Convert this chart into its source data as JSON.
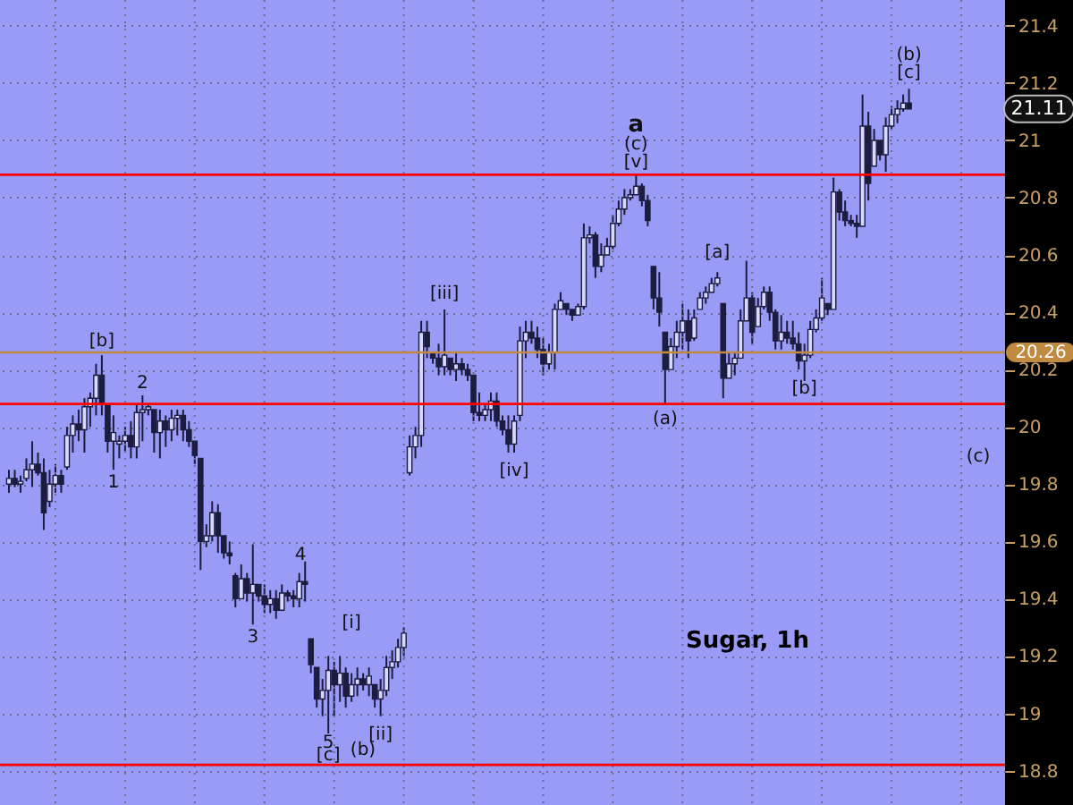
{
  "chart_data": {
    "type": "candlestick",
    "title": "Sugar, 1h",
    "color": "#1c1c40",
    "tick_labels": "y",
    "grid": true,
    "categories": [
      null,
      null,
      null,
      null,
      null,
      null,
      null,
      null,
      null,
      null,
      null,
      null,
      null,
      null,
      null,
      null,
      null,
      null,
      null,
      null,
      null,
      null,
      null,
      null,
      null,
      null,
      null,
      null,
      null,
      null,
      null,
      null,
      null,
      null,
      null,
      null,
      null,
      null,
      null,
      null,
      null,
      null,
      null,
      null,
      null,
      null,
      null,
      null,
      null,
      null,
      null,
      null,
      null,
      null,
      null,
      null,
      null,
      null,
      null,
      null,
      null,
      null,
      null,
      null,
      null,
      null,
      null,
      null,
      null,
      null,
      null,
      null,
      null,
      null,
      null,
      null,
      null,
      null,
      null,
      null,
      null,
      null,
      null,
      null,
      null,
      null,
      null,
      null,
      null,
      null,
      null,
      null,
      null,
      null,
      null,
      null,
      null,
      null,
      null,
      null,
      null,
      null,
      null,
      null,
      null,
      null,
      null,
      null,
      null,
      null,
      null,
      null,
      null,
      null,
      null,
      null,
      null,
      null,
      null,
      null,
      null,
      null,
      null,
      null,
      null,
      null,
      null,
      null,
      null,
      null,
      null,
      null,
      null,
      null,
      null,
      null,
      null,
      null,
      null,
      null,
      null,
      null,
      null,
      null,
      null,
      null,
      null,
      null,
      null,
      null,
      null,
      null,
      null,
      null,
      null,
      null,
      null,
      null,
      null,
      null,
      null,
      null,
      null,
      null,
      null,
      null,
      null,
      null,
      null,
      null,
      null
    ],
    "ohlc": [
      [
        19.8,
        19.85,
        19.77,
        19.82
      ],
      [
        19.82,
        19.85,
        19.79,
        19.8
      ],
      [
        19.8,
        19.83,
        19.77,
        19.81
      ],
      [
        19.82,
        19.89,
        19.81,
        19.85
      ],
      [
        19.85,
        19.95,
        19.79,
        19.87
      ],
      [
        19.87,
        19.91,
        19.83,
        19.84
      ],
      [
        19.84,
        19.89,
        19.64,
        19.7
      ],
      [
        19.74,
        19.85,
        19.72,
        19.8
      ],
      [
        19.8,
        19.87,
        19.77,
        19.83
      ],
      [
        19.83,
        19.85,
        19.77,
        19.8
      ],
      [
        19.86,
        20.0,
        19.85,
        19.97
      ],
      [
        19.97,
        20.04,
        19.91,
        20.01
      ],
      [
        20.01,
        20.06,
        19.95,
        19.99
      ],
      [
        19.99,
        20.1,
        19.91,
        20.07
      ],
      [
        20.07,
        20.12,
        20.0,
        20.1
      ],
      [
        20.1,
        20.22,
        20.04,
        20.18
      ],
      [
        20.18,
        20.25,
        20.04,
        20.08
      ],
      [
        20.08,
        20.08,
        19.91,
        19.95
      ],
      [
        19.95,
        20.04,
        19.85,
        19.98
      ],
      [
        19.94,
        19.97,
        19.89,
        19.95
      ],
      [
        19.95,
        20.0,
        19.91,
        19.97
      ],
      [
        19.97,
        20.02,
        19.89,
        19.93
      ],
      [
        19.93,
        20.08,
        19.89,
        20.05
      ],
      [
        20.05,
        20.11,
        19.95,
        20.06
      ],
      [
        20.06,
        20.08,
        20.04,
        20.07
      ],
      [
        20.06,
        20.06,
        19.91,
        19.98
      ],
      [
        19.98,
        20.06,
        19.89,
        20.02
      ],
      [
        20.02,
        20.04,
        19.93,
        19.99
      ],
      [
        19.99,
        20.06,
        19.95,
        20.03
      ],
      [
        20.03,
        20.06,
        19.97,
        20.04
      ],
      [
        20.04,
        20.06,
        19.95,
        19.99
      ],
      [
        19.99,
        20.02,
        19.93,
        19.95
      ],
      [
        19.95,
        19.95,
        19.87,
        19.9
      ],
      [
        19.89,
        19.89,
        19.5,
        19.6
      ],
      [
        19.6,
        19.66,
        19.58,
        19.62
      ],
      [
        19.62,
        19.74,
        19.6,
        19.7
      ],
      [
        19.7,
        19.73,
        19.56,
        19.62
      ],
      [
        19.62,
        19.62,
        19.54,
        19.56
      ],
      [
        19.56,
        19.6,
        19.52,
        19.55
      ],
      [
        19.48,
        19.49,
        19.37,
        19.4
      ],
      [
        19.4,
        19.52,
        19.4,
        19.47
      ],
      [
        19.47,
        19.49,
        19.39,
        19.42
      ],
      [
        19.42,
        19.59,
        19.31,
        19.45
      ],
      [
        19.45,
        19.45,
        19.39,
        19.41
      ],
      [
        19.41,
        19.45,
        19.35,
        19.38
      ],
      [
        19.38,
        19.43,
        19.35,
        19.4
      ],
      [
        19.4,
        19.43,
        19.33,
        19.36
      ],
      [
        19.36,
        19.45,
        19.36,
        19.42
      ],
      [
        19.42,
        19.43,
        19.39,
        19.41
      ],
      [
        19.41,
        19.43,
        19.37,
        19.4
      ],
      [
        19.4,
        19.49,
        19.37,
        19.46
      ],
      [
        19.46,
        19.53,
        19.39,
        19.45
      ],
      [
        19.26,
        19.26,
        19.14,
        19.17
      ],
      [
        19.16,
        19.16,
        19.02,
        19.05
      ],
      [
        19.05,
        19.12,
        18.99,
        19.08
      ],
      [
        19.08,
        19.2,
        18.93,
        19.15
      ],
      [
        19.15,
        19.18,
        18.99,
        19.1
      ],
      [
        19.1,
        19.2,
        19.04,
        19.14
      ],
      [
        19.14,
        19.16,
        19.02,
        19.06
      ],
      [
        19.06,
        19.14,
        19.04,
        19.1
      ],
      [
        19.1,
        19.16,
        19.06,
        19.12
      ],
      [
        19.12,
        19.14,
        19.08,
        19.1
      ],
      [
        19.1,
        19.16,
        19.06,
        19.13
      ],
      [
        19.1,
        19.1,
        19.02,
        19.05
      ],
      [
        19.05,
        19.12,
        18.99,
        19.08
      ],
      [
        19.08,
        19.2,
        19.06,
        19.16
      ],
      [
        19.16,
        19.22,
        19.12,
        19.18
      ],
      [
        19.18,
        19.26,
        19.16,
        19.23
      ],
      [
        19.23,
        19.3,
        19.2,
        19.28
      ],
      [
        19.84,
        19.97,
        19.83,
        19.93
      ],
      [
        19.93,
        20.0,
        19.89,
        19.97
      ],
      [
        19.97,
        20.37,
        19.93,
        20.33
      ],
      [
        20.33,
        20.37,
        20.24,
        20.28
      ],
      [
        20.26,
        20.26,
        20.22,
        20.24
      ],
      [
        20.24,
        20.29,
        20.18,
        20.21
      ],
      [
        20.21,
        20.41,
        20.18,
        20.25
      ],
      [
        20.24,
        20.24,
        20.18,
        20.2
      ],
      [
        20.2,
        20.26,
        20.16,
        20.22
      ],
      [
        20.22,
        20.24,
        20.18,
        20.2
      ],
      [
        20.2,
        20.22,
        20.16,
        20.18
      ],
      [
        20.18,
        20.18,
        20.02,
        20.05
      ],
      [
        20.05,
        20.12,
        20.02,
        20.04
      ],
      [
        20.04,
        20.08,
        20.02,
        20.06
      ],
      [
        20.06,
        20.12,
        20.02,
        20.09
      ],
      [
        20.09,
        20.12,
        20.0,
        20.02
      ],
      [
        20.02,
        20.04,
        19.97,
        19.99
      ],
      [
        19.99,
        20.04,
        19.91,
        19.94
      ],
      [
        19.94,
        20.04,
        19.91,
        20.02
      ],
      [
        20.04,
        20.35,
        20.02,
        20.3
      ],
      [
        20.3,
        20.37,
        20.24,
        20.33
      ],
      [
        20.33,
        20.37,
        20.29,
        20.31
      ],
      [
        20.31,
        20.35,
        20.24,
        20.27
      ],
      [
        20.27,
        20.31,
        20.18,
        20.22
      ],
      [
        20.22,
        20.29,
        20.2,
        20.26
      ],
      [
        20.26,
        20.43,
        20.2,
        20.41
      ],
      [
        20.41,
        20.47,
        20.41,
        20.44
      ],
      [
        20.43,
        20.43,
        20.39,
        20.41
      ],
      [
        20.41,
        20.41,
        20.37,
        20.39
      ],
      [
        20.39,
        20.43,
        20.39,
        20.42
      ],
      [
        20.42,
        20.71,
        20.41,
        20.66
      ],
      [
        20.66,
        20.7,
        20.64,
        20.67
      ],
      [
        20.67,
        20.68,
        20.52,
        20.56
      ],
      [
        20.56,
        20.64,
        20.54,
        20.6
      ],
      [
        20.6,
        20.66,
        20.6,
        20.63
      ],
      [
        20.63,
        20.74,
        20.62,
        20.71
      ],
      [
        20.71,
        20.79,
        20.7,
        20.76
      ],
      [
        20.76,
        20.83,
        20.74,
        20.8
      ],
      [
        20.8,
        20.83,
        20.79,
        20.81
      ],
      [
        20.81,
        20.88,
        20.81,
        20.84
      ],
      [
        20.84,
        20.85,
        20.77,
        20.79
      ],
      [
        20.79,
        20.81,
        20.7,
        20.72
      ],
      [
        20.56,
        20.56,
        20.41,
        20.45
      ],
      [
        20.45,
        20.54,
        20.35,
        20.4
      ],
      [
        20.33,
        20.33,
        20.08,
        20.2
      ],
      [
        20.2,
        20.31,
        20.2,
        20.28
      ],
      [
        20.28,
        20.37,
        20.24,
        20.33
      ],
      [
        20.33,
        20.43,
        20.27,
        20.37
      ],
      [
        20.37,
        20.41,
        20.24,
        20.3
      ],
      [
        20.31,
        20.41,
        20.3,
        20.38
      ],
      [
        20.41,
        20.47,
        20.41,
        20.45
      ],
      [
        20.45,
        20.49,
        20.43,
        20.47
      ],
      [
        20.47,
        20.52,
        20.47,
        20.5
      ],
      [
        20.5,
        20.54,
        20.49,
        20.52
      ],
      [
        20.43,
        20.43,
        20.1,
        20.17
      ],
      [
        20.17,
        20.26,
        20.17,
        20.22
      ],
      [
        20.22,
        20.26,
        20.18,
        20.24
      ],
      [
        20.24,
        20.41,
        20.24,
        20.37
      ],
      [
        20.37,
        20.58,
        20.37,
        20.45
      ],
      [
        20.45,
        20.47,
        20.29,
        20.33
      ],
      [
        20.35,
        20.45,
        20.35,
        20.42
      ],
      [
        20.42,
        20.49,
        20.41,
        20.47
      ],
      [
        20.47,
        20.49,
        20.37,
        20.4
      ],
      [
        20.4,
        20.41,
        20.27,
        20.3
      ],
      [
        20.3,
        20.39,
        20.27,
        20.33
      ],
      [
        20.33,
        20.37,
        20.29,
        20.31
      ],
      [
        20.31,
        20.37,
        20.27,
        20.29
      ],
      [
        20.29,
        20.33,
        20.2,
        20.23
      ],
      [
        20.23,
        20.29,
        20.16,
        20.25
      ],
      [
        20.25,
        20.37,
        20.24,
        20.34
      ],
      [
        20.34,
        20.41,
        20.33,
        20.38
      ],
      [
        20.38,
        20.52,
        20.37,
        20.45
      ],
      [
        20.43,
        20.43,
        20.39,
        20.41
      ],
      [
        20.41,
        20.87,
        20.41,
        20.82
      ],
      [
        20.82,
        20.83,
        20.72,
        20.75
      ],
      [
        20.75,
        20.79,
        20.7,
        20.72
      ],
      [
        20.72,
        20.74,
        20.7,
        20.71
      ],
      [
        20.71,
        20.74,
        20.66,
        20.7
      ],
      [
        20.7,
        21.16,
        20.7,
        21.05
      ],
      [
        21.05,
        21.1,
        20.79,
        20.85
      ],
      [
        20.91,
        21.04,
        20.91,
        21.0
      ],
      [
        21.0,
        21.0,
        20.93,
        20.95
      ],
      [
        20.95,
        21.08,
        20.89,
        21.05
      ],
      [
        21.05,
        21.12,
        21.04,
        21.09
      ],
      [
        21.09,
        21.14,
        21.06,
        21.11
      ],
      [
        21.11,
        21.16,
        21.1,
        21.13
      ],
      [
        21.13,
        21.18,
        21.11,
        21.11
      ],
      null,
      null,
      null,
      null,
      null,
      null,
      null,
      null,
      null,
      null,
      null,
      null,
      null,
      null,
      null
    ],
    "ylim": [
      18.68,
      21.49
    ],
    "yticks": [
      18.8,
      19,
      19.2,
      19.4,
      19.6,
      19.8,
      20,
      20.2,
      20.4,
      20.6,
      20.8,
      21,
      21.2,
      21.4
    ],
    "ref_lines": [
      {
        "axis": "y",
        "value": 20.88,
        "color": "#ff0000"
      },
      {
        "axis": "y",
        "value": 20.08,
        "color": "#ff0000"
      },
      {
        "axis": "y",
        "value": 18.82,
        "color": "#ff0000"
      },
      {
        "axis": "y",
        "value": 20.26,
        "label": "20.26",
        "color": "#c08a40"
      }
    ],
    "annotations": [
      {
        "text": "[b]",
        "y": 20.25
      },
      {
        "text": "2",
        "y": 20.11
      },
      {
        "text": "1",
        "y": 19.85
      },
      {
        "text": "3",
        "y": 19.31
      },
      "4",
      {
        "text": "5",
        "y": 18.93
      },
      {
        "text": "[c]",
        "y": 18.93
      },
      "(b)",
      {
        "text": "[i]",
        "y": 19.16
      },
      {
        "text": "[ii]",
        "y": 18.99
      },
      {
        "text": "[iii]",
        "y": 20.41
      },
      {
        "text": "[iv]",
        "y": 19.91
      },
      {
        "text": "[v]",
        "y": 20.88
      },
      {
        "text": "(c)",
        "y": 20.88
      },
      {
        "text": "a",
        "y": 20.88
      },
      {
        "text": "(a)",
        "y": 20.08
      },
      {
        "text": "[a]",
        "y": 20.54
      },
      {
        "text": "[b]",
        "y": 20.16
      },
      {
        "text": "[c]",
        "y": 21.18
      },
      {
        "text": "(b)",
        "y": 21.18
      },
      "(c)",
      "21.11"
    ]
  }
}
